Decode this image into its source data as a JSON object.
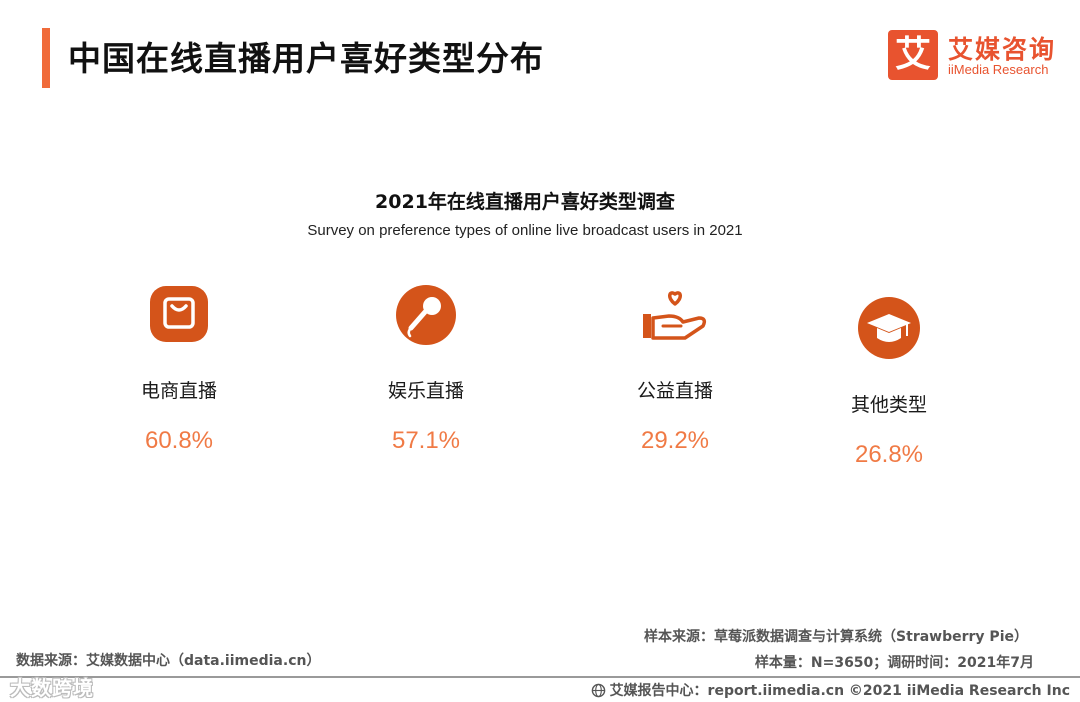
{
  "header": {
    "title": "中国在线直播用户喜好类型分布",
    "logo_mark": "艾",
    "logo_cn": "艾媒咨询",
    "logo_en": "iiMedia Research"
  },
  "chart_data": {
    "type": "table",
    "title": "2021年在线直播用户喜好类型调查",
    "subtitle": "Survey on preference types of online live broadcast users in 2021",
    "categories": [
      "电商直播",
      "娱乐直播",
      "公益直播",
      "其他类型"
    ],
    "values": [
      60.8,
      57.1,
      29.2,
      26.8
    ],
    "value_labels": [
      "60.8%",
      "57.1%",
      "29.2%",
      "26.8%"
    ],
    "icons": [
      "shopping-bag-icon",
      "microphone-icon",
      "charity-hand-heart-icon",
      "graduation-cap-icon"
    ],
    "accent_color": "#f07a45",
    "icon_color": "#d4541a"
  },
  "footer": {
    "data_source": "数据来源：艾媒数据中心（data.iimedia.cn）",
    "sample_source": "样本来源：草莓派数据调查与计算系统（Strawberry Pie）",
    "sample_info": "样本量：N=3650；调研时间：2021年7月",
    "report_center": "艾媒报告中心：report.iimedia.cn  ©2021  iiMedia Research  Inc",
    "watermark": "大数跨境"
  }
}
